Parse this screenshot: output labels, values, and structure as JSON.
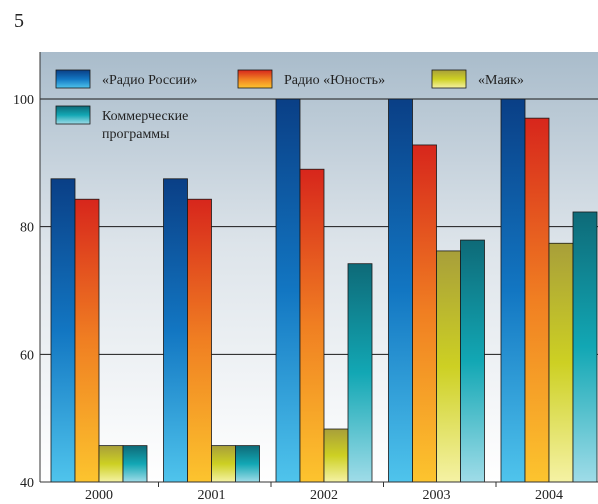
{
  "page_number": "5",
  "chart_data": {
    "type": "bar",
    "title": "",
    "xlabel": "",
    "ylabel": "",
    "categories": [
      "2000",
      "2001",
      "2002",
      "2003",
      "2004"
    ],
    "ylim": [
      40,
      100
    ],
    "yticks": [
      40,
      60,
      80,
      100
    ],
    "grid": true,
    "legend_position": "top-left",
    "series": [
      {
        "name": "«Радио России»",
        "color": "#0a4e94",
        "values": [
          87.5,
          87.5,
          100,
          100,
          100
        ]
      },
      {
        "name": "Радио «Юность»",
        "color": "#e4321e",
        "values": [
          84.3,
          84.3,
          89,
          92.8,
          97
        ]
      },
      {
        "name": "«Маяк»",
        "color": "#b8b020",
        "values": [
          45.7,
          45.7,
          48.3,
          76.2,
          77.4
        ]
      },
      {
        "name": "Коммерческие программы",
        "color": "#137c86",
        "values": [
          45.7,
          45.7,
          74.2,
          77.9,
          82.3
        ]
      }
    ]
  }
}
